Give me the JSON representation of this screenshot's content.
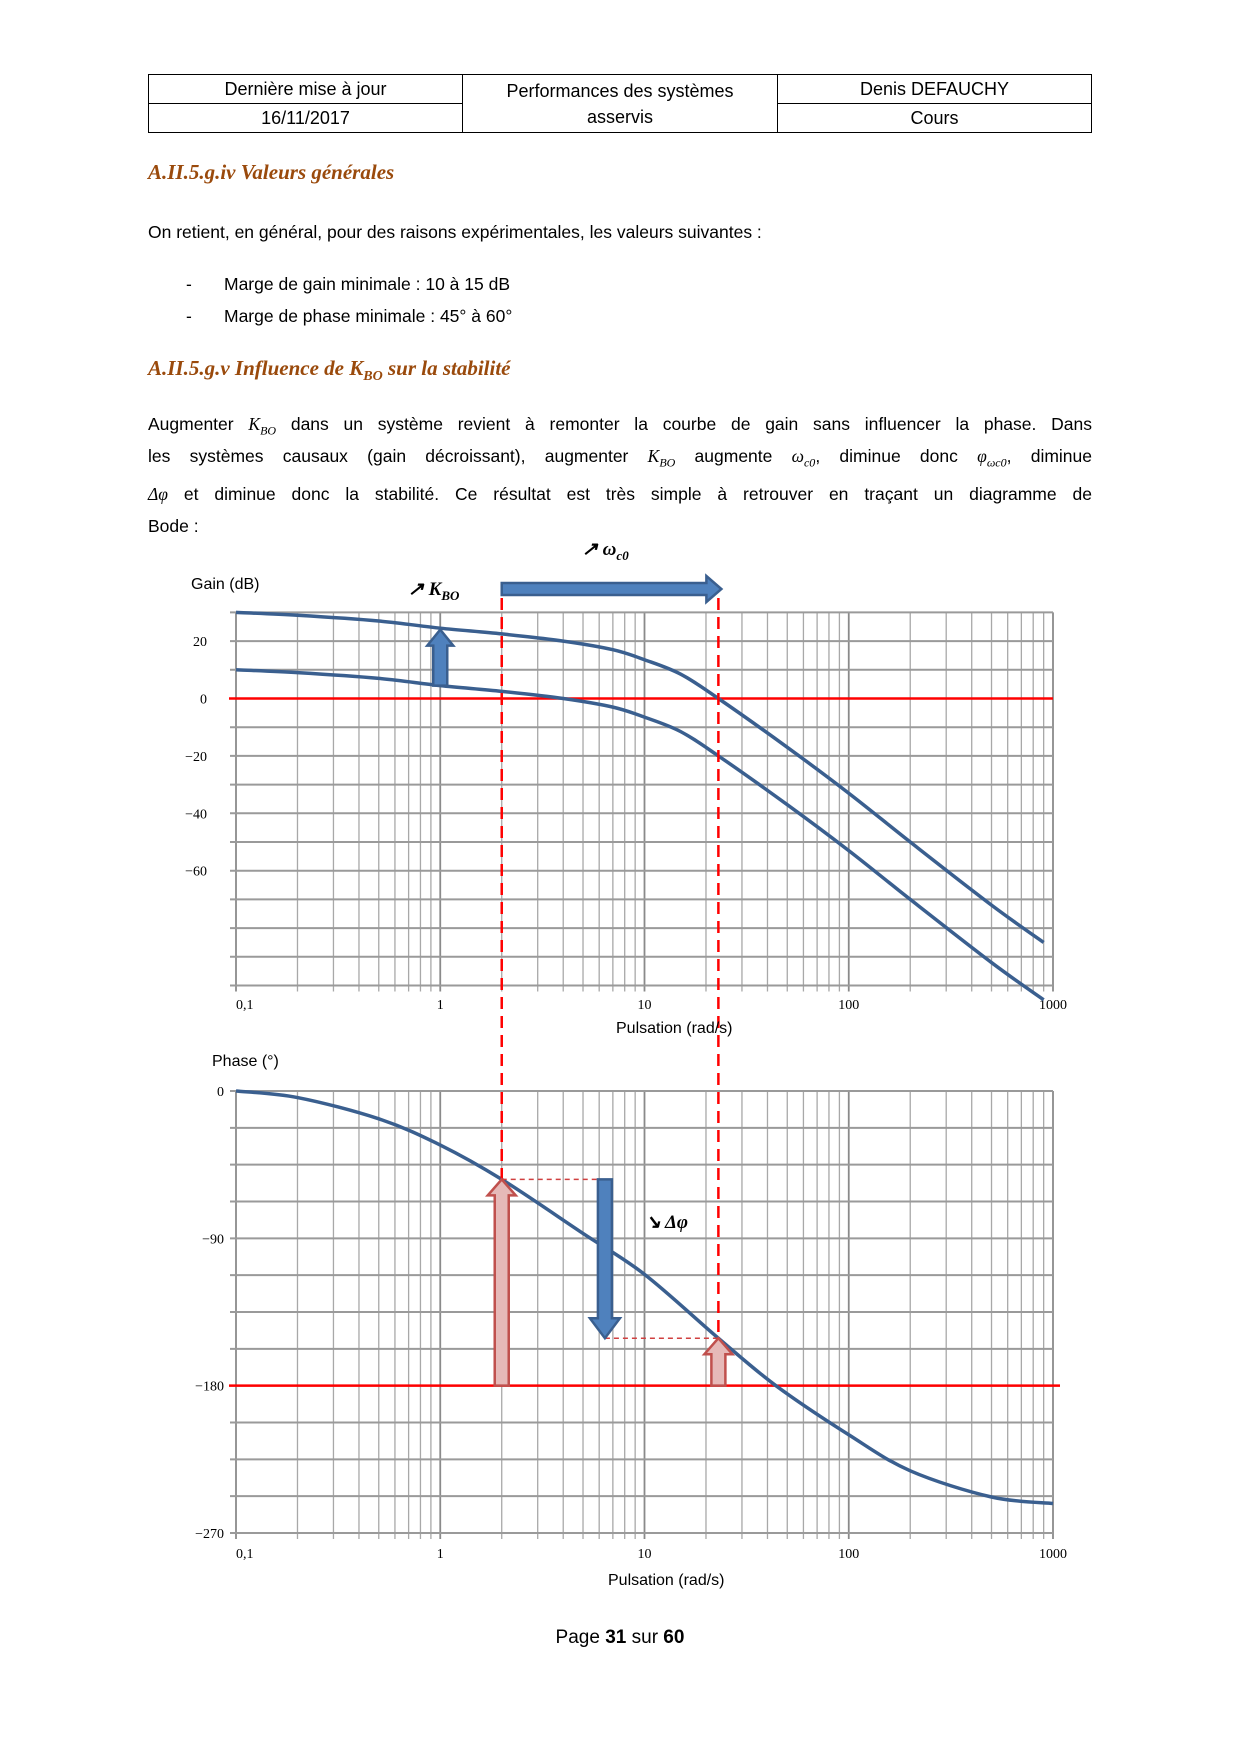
{
  "header": {
    "updated_label": "Dernière mise à jour",
    "date": "16/11/2017",
    "title": "Performances des systèmes asservis",
    "author": "Denis DEFAUCHY",
    "type": "Cours"
  },
  "section1": {
    "heading": "A.II.5.g.iv Valeurs générales",
    "intro": "On retient, en général, pour des raisons expérimentales, les valeurs suivantes :",
    "bullets": [
      "Marge de gain minimale : 10 à 15 dB",
      "Marge de phase minimale : 45° à 60°"
    ],
    "dash": "-"
  },
  "section2": {
    "heading_a": "A.II.5.g.v Influence de ",
    "heading_k": "K",
    "heading_sub": "BO",
    "heading_b": " sur la stabilité",
    "p1a": "Augmenter ",
    "k": "K",
    "k_sub": "BO",
    "p1b": " dans un système revient à remonter la courbe de gain sans influencer la phase. Dans",
    "p2a": "les systèmes causaux (gain décroissant), augmenter ",
    "p2b": " augmente ",
    "omega": "ω",
    "omega_sub": "c0",
    "p2c": ", diminue donc ",
    "phi": "φ",
    "phi_sub": "ωc0",
    "p2d": ", diminue",
    "dphi": "Δφ",
    "p3": " et diminue donc la stabilité. Ce résultat est très simple à retrouver en traçant un diagramme de",
    "p4": "Bode :"
  },
  "chart_data": [
    {
      "type": "line",
      "ylabel": "Gain (dB)",
      "xlabel": "Pulsation (rad/s)",
      "xscale": "log",
      "xlim": [
        0.1,
        1000
      ],
      "ylim": [
        -100,
        30
      ],
      "x_ticks": [
        "0,1",
        "1",
        "10",
        "100",
        "1000"
      ],
      "y_ticks": [
        "20",
        "0",
        "−20",
        "−40",
        "−60"
      ],
      "grid": true,
      "series": [
        {
          "x": [
            0.1,
            0.2,
            0.5,
            1,
            2,
            4,
            7,
            10,
            15,
            23,
            50,
            100,
            200,
            500,
            900
          ],
          "y": [
            30,
            29,
            27,
            24.5,
            22.5,
            20,
            17,
            13.5,
            8.5,
            0,
            -17,
            -33,
            -50,
            -72,
            -85
          ]
        },
        {
          "x": [
            0.1,
            0.2,
            0.5,
            1,
            2,
            4,
            7,
            10,
            15,
            23,
            50,
            100,
            200,
            500,
            900
          ],
          "y": [
            10,
            9,
            7,
            4.5,
            2.5,
            0,
            -3,
            -6.5,
            -11.5,
            -20,
            -37,
            -53,
            -70,
            -92,
            -105
          ]
        }
      ],
      "reference_line": {
        "y": 0,
        "color": "#ff0000"
      },
      "marker_lines": [
        2,
        23
      ],
      "annotations": {
        "kbo": "↗ K",
        "kbo_sub": "BO",
        "wc": "↗ ω",
        "wc_sub": "c0"
      },
      "colors": {
        "curve": "#3a5f8f",
        "arrow": "#4f81bd",
        "marker": "#ff0000"
      }
    },
    {
      "type": "line",
      "ylabel": "Phase (°)",
      "xlabel": "Pulsation (rad/s)",
      "xscale": "log",
      "xlim": [
        0.1,
        1000
      ],
      "ylim": [
        -270,
        0
      ],
      "x_ticks": [
        "0,1",
        "1",
        "10",
        "100",
        "1000"
      ],
      "y_ticks": [
        "0",
        "−90",
        "−180",
        "−270"
      ],
      "grid": true,
      "series": [
        {
          "x": [
            0.1,
            0.2,
            0.5,
            1,
            2,
            5,
            10,
            23,
            44,
            100,
            200,
            500,
            1000
          ],
          "y": [
            0,
            -4,
            -17,
            -33,
            -54,
            -87,
            -112,
            -151,
            -180,
            -210,
            -232,
            -248,
            -252
          ]
        }
      ],
      "reference_line": {
        "y": -180,
        "color": "#ff0000"
      },
      "margins": [
        {
          "x": 2,
          "from": -180,
          "to": -54
        },
        {
          "x": 23,
          "from": -180,
          "to": -151
        }
      ],
      "delta_arrow": {
        "x": 6.4,
        "from": -54,
        "to": -151
      },
      "annotations": {
        "dphi": "↘ Δφ"
      },
      "colors": {
        "curve": "#3a5f8f",
        "arrow": "#4f81bd",
        "margin_arrow": "#e6b9b8",
        "margin_stroke": "#c0504d"
      }
    }
  ],
  "footer": {
    "page_a": "Page ",
    "page": "31",
    "page_b": " sur ",
    "total": "60"
  }
}
